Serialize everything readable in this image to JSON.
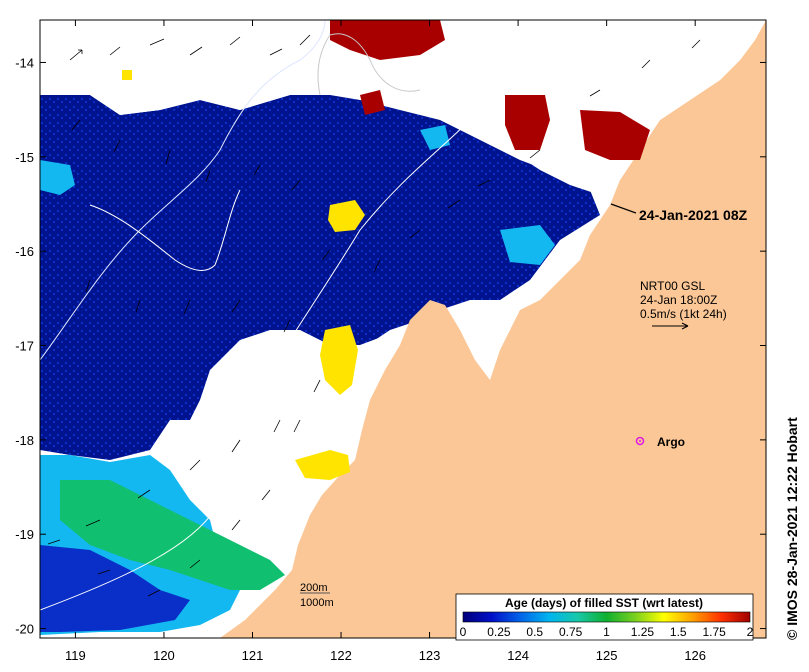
{
  "map": {
    "lon_ticks": [
      "119",
      "120",
      "121",
      "122",
      "123",
      "124",
      "125",
      "126"
    ],
    "lat_ticks": [
      "-14",
      "-15",
      "-16",
      "-17",
      "-18",
      "-19",
      "-20"
    ],
    "lon_range": [
      118.6,
      126.8
    ],
    "lat_range": [
      -20.1,
      -13.55
    ]
  },
  "annotations": {
    "pass_time": "24-Jan-2021 08Z",
    "current_product": "NRT00 GSL",
    "current_time": "24-Jan 18:00Z",
    "vector_scale": "0.5m/s (1kt 24h)",
    "argo_label": "Argo",
    "contour_200": "200m",
    "contour_1000": "1000m",
    "credit": "© IMOS 28-Jan-2021 12:22 Hobart"
  },
  "colorbar": {
    "title": "Age (days) of filled SST (wrt latest)",
    "tick_labels": [
      "0",
      "0.25",
      "0.5",
      "0.75",
      "1",
      "1.25",
      "1.5",
      "1.75",
      "2"
    ],
    "range": [
      0,
      2
    ],
    "colors": [
      "#00007a",
      "#0010c8",
      "#0064e8",
      "#00b4f0",
      "#18c8a8",
      "#10b030",
      "#7ad020",
      "#ffff00",
      "#ffa000",
      "#ff3000",
      "#a00000"
    ]
  },
  "colors": {
    "land": "#fcc796",
    "no_data": "#ffffff",
    "deep_blue": "#00138f",
    "mid_blue": "#0a2fc8",
    "cyan": "#14b8f0",
    "green": "#10c070",
    "yellow": "#ffe400",
    "dark_red": "#a80000",
    "argo_marker": "#e020e0"
  },
  "argo": {
    "lon": 125.3,
    "lat": -18.0
  }
}
